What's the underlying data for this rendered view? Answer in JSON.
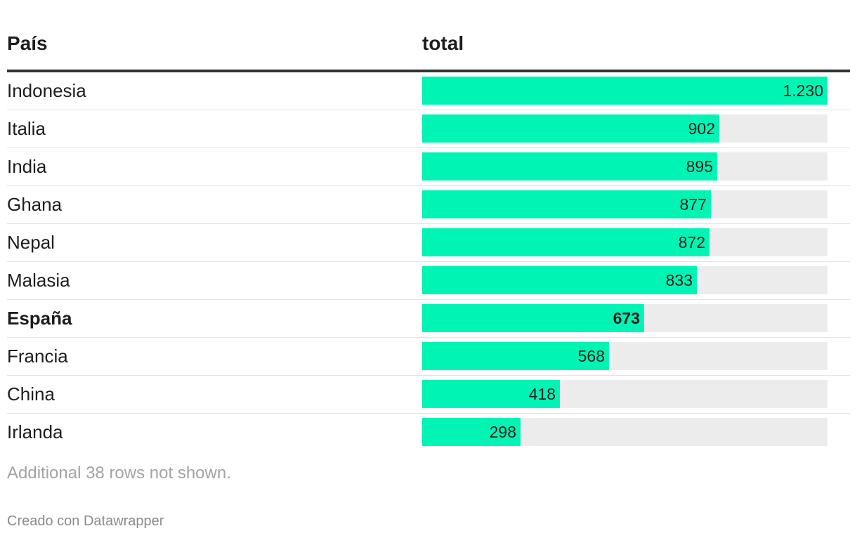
{
  "table": {
    "headers": {
      "country": "País",
      "total": "total"
    },
    "rows_note": "Additional 38 rows not shown.",
    "credit": "Creado con Datawrapper",
    "bar_color": "#00f5b4",
    "track_color": "#ececec"
  },
  "chart_data": {
    "type": "bar",
    "orientation": "horizontal",
    "categories": [
      "Indonesia",
      "Italia",
      "India",
      "Ghana",
      "Nepal",
      "Malasia",
      "España",
      "Francia",
      "China",
      "Irlanda"
    ],
    "values": [
      1230,
      902,
      895,
      877,
      872,
      833,
      673,
      568,
      418,
      298
    ],
    "labels": [
      "1.230",
      "902",
      "895",
      "877",
      "872",
      "833",
      "673",
      "568",
      "418",
      "298"
    ],
    "highlight": "España",
    "xlim": [
      0,
      1230
    ],
    "xlabel": "total",
    "ylabel": "País"
  }
}
